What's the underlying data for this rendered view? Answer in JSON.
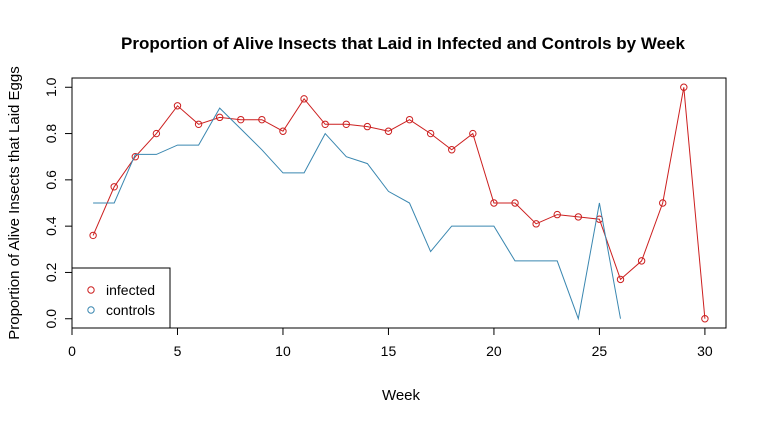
{
  "chart_data": {
    "type": "line",
    "title": "Proportion of Alive Insects that Laid in Infected and Controls by Week",
    "xlabel": "Week",
    "ylabel": "Proportion of Alive Insects that Laid Eggs",
    "xlim": [
      0,
      31
    ],
    "ylim": [
      -0.04,
      1.04
    ],
    "xticks": [
      0,
      5,
      10,
      15,
      20,
      25,
      30
    ],
    "yticks": [
      0.0,
      0.2,
      0.4,
      0.6,
      0.8,
      1.0
    ],
    "ytick_labels": [
      "0.0",
      "0.2",
      "0.4",
      "0.6",
      "0.8",
      "1.0"
    ],
    "legend_position": "bottom-left",
    "series": [
      {
        "name": "infected",
        "color": "#cc1f1f",
        "marker": "circle",
        "x": [
          1,
          2,
          3,
          4,
          5,
          6,
          7,
          8,
          9,
          10,
          11,
          12,
          13,
          14,
          15,
          16,
          17,
          18,
          19,
          20,
          21,
          22,
          23,
          24,
          25,
          26,
          27,
          28,
          29,
          30
        ],
        "values": [
          0.36,
          0.57,
          0.7,
          0.8,
          0.92,
          0.84,
          0.87,
          0.86,
          0.86,
          0.81,
          0.95,
          0.84,
          0.84,
          0.83,
          0.81,
          0.86,
          0.8,
          0.73,
          0.8,
          0.5,
          0.5,
          0.41,
          0.45,
          0.44,
          0.43,
          0.17,
          0.25,
          0.5,
          1.0,
          0.0
        ]
      },
      {
        "name": "controls",
        "color": "#3a87b0",
        "marker": "none",
        "x": [
          1,
          2,
          3,
          4,
          5,
          6,
          7,
          8,
          9,
          10,
          11,
          12,
          13,
          14,
          15,
          16,
          17,
          18,
          19,
          20,
          21,
          22,
          23,
          24,
          25,
          26
        ],
        "values": [
          0.5,
          0.5,
          0.71,
          0.71,
          0.75,
          0.75,
          0.91,
          0.82,
          0.73,
          0.63,
          0.63,
          0.8,
          0.7,
          0.67,
          0.55,
          0.5,
          0.29,
          0.4,
          0.4,
          0.4,
          0.25,
          0.25,
          0.25,
          0.0,
          0.5,
          0.0
        ]
      }
    ]
  }
}
